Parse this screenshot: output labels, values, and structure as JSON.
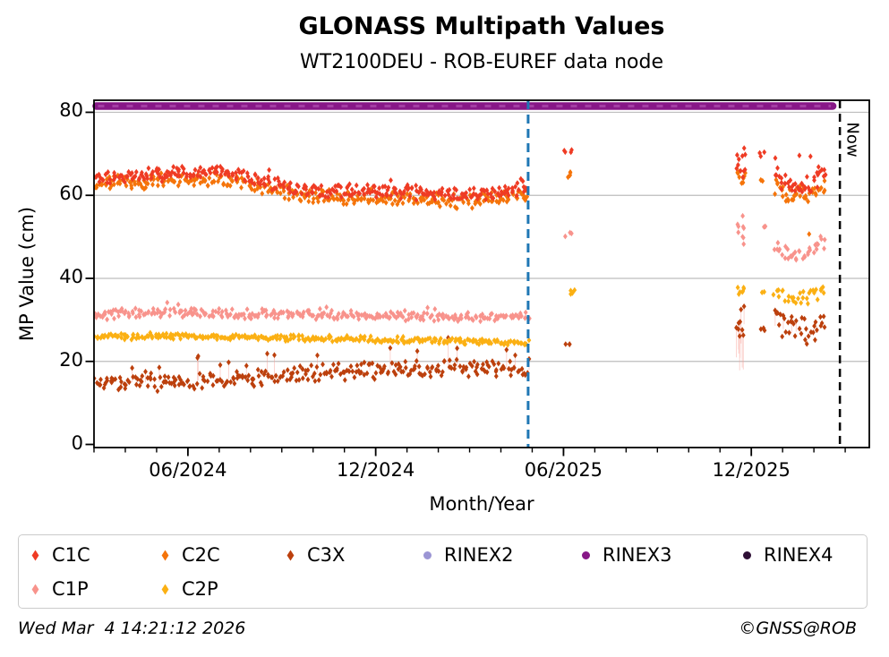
{
  "footer": {
    "timestamp": "Wed Mar  4 14:21:12 2026",
    "copyright": "©GNSS@ROB"
  },
  "legend": {
    "items": [
      {
        "label": "C1C",
        "color": "#ef3b24",
        "marker": "diamond"
      },
      {
        "label": "C2C",
        "color": "#f5740a",
        "marker": "diamond"
      },
      {
        "label": "C3X",
        "color": "#bc400d",
        "marker": "diamond"
      },
      {
        "label": "RINEX2",
        "color": "#9b95d4",
        "marker": "circle"
      },
      {
        "label": "RINEX3",
        "color": "#871787",
        "marker": "circle"
      },
      {
        "label": "RINEX4",
        "color": "#2e0f35",
        "marker": "circle"
      },
      {
        "label": "C1P",
        "color": "#f8938c",
        "marker": "diamond"
      },
      {
        "label": "C2P",
        "color": "#fbb013",
        "marker": "diamond"
      }
    ]
  },
  "chart_data": {
    "type": "scatter",
    "title": "GLONASS Multipath Values",
    "subtitle": "WT2100DEU - ROB-EUREF data node",
    "xlabel": "Month/Year",
    "ylabel": "MP Value (cm)",
    "grid_color": "#bdbdbd",
    "x_axis": {
      "unit": "months-since-2024-03",
      "range": [
        0,
        24.77
      ],
      "major_ticks": [
        {
          "m": 3,
          "label": "06/2024"
        },
        {
          "m": 9,
          "label": "12/2024"
        },
        {
          "m": 15,
          "label": "06/2025"
        },
        {
          "m": 21,
          "label": "12/2025"
        }
      ],
      "minor_tick_months": [
        0,
        1,
        2,
        3,
        4,
        5,
        6,
        7,
        8,
        9,
        10,
        11,
        12,
        13,
        14,
        15,
        16,
        17,
        18,
        19,
        20,
        21,
        22,
        23,
        24
      ]
    },
    "y_axis": {
      "range": [
        -0.75,
        82.9
      ],
      "ticks": [
        0,
        20,
        40,
        60,
        80
      ],
      "grid_values": [
        20,
        40,
        60,
        80
      ]
    },
    "annotations": {
      "now_label": "Now",
      "now_line_month": 23.83,
      "now_line_color": "#000000",
      "marker_line_month": 13.87,
      "marker_line_color": "#1f77b4"
    },
    "rinex3_band": {
      "value": 81.5,
      "month_start": 0.07,
      "month_end": 23.6,
      "color": "#871787",
      "overlay_color": "#a33ea3"
    },
    "series": [
      {
        "name": "C3X",
        "color": "#bc400d",
        "seed": 505,
        "segments": [
          {
            "kind": "trend",
            "n": 300,
            "jitter": 1.9,
            "stems": true,
            "keys": [
              [
                0,
                15.3
              ],
              [
                1.5,
                14.9
              ],
              [
                3,
                15.3
              ],
              [
                5,
                16.0
              ],
              [
                7,
                17.2
              ],
              [
                9,
                17.9
              ],
              [
                11,
                18.2
              ],
              [
                12.5,
                18.4
              ],
              [
                13.87,
                17.9
              ]
            ],
            "spikes": {
              "count": 20,
              "min": 2.6,
              "max": 5.4
            }
          },
          {
            "kind": "cluster",
            "n": 3,
            "m": [
              15.05,
              15.3
            ],
            "v": [
              23.5,
              24.2
            ]
          },
          {
            "kind": "cluster",
            "n": 9,
            "m": [
              20.52,
              20.82
            ],
            "v": [
              21.8,
              33.3
            ],
            "stems": true
          },
          {
            "kind": "cluster",
            "n": 3,
            "m": [
              21.28,
              21.45
            ],
            "v": [
              27.2,
              28.5
            ]
          },
          {
            "kind": "trend",
            "n": 36,
            "jitter": 3.1,
            "stems": true,
            "keys": [
              [
                21.75,
                28.6
              ],
              [
                22.3,
                27.0
              ],
              [
                22.8,
                27.6
              ],
              [
                23.35,
                28.4
              ]
            ],
            "spikes": {
              "count": 6,
              "min": 2.5,
              "max": 4.8
            }
          }
        ]
      },
      {
        "name": "C2P",
        "color": "#fbb013",
        "seed": 404,
        "segments": [
          {
            "kind": "trend",
            "n": 300,
            "jitter": 0.65,
            "keys": [
              [
                0,
                25.9
              ],
              [
                2,
                26.1
              ],
              [
                4,
                25.9
              ],
              [
                6,
                25.6
              ],
              [
                8,
                25.4
              ],
              [
                10,
                25.1
              ],
              [
                12,
                24.8
              ],
              [
                13.87,
                24.7
              ]
            ]
          },
          {
            "kind": "cluster",
            "n": 4,
            "m": [
              15.05,
              15.38
            ],
            "v": [
              35.7,
              37.4
            ]
          },
          {
            "kind": "cluster",
            "n": 7,
            "m": [
              20.52,
              20.82
            ],
            "v": [
              36.0,
              38.0
            ]
          },
          {
            "kind": "cluster",
            "n": 2,
            "m": [
              21.3,
              21.42
            ],
            "v": [
              36.1,
              36.9
            ]
          },
          {
            "kind": "trend",
            "n": 30,
            "jitter": 1.5,
            "keys": [
              [
                21.75,
                36.3
              ],
              [
                22.3,
                35.0
              ],
              [
                22.8,
                35.3
              ],
              [
                23.35,
                36.8
              ]
            ]
          }
        ]
      },
      {
        "name": "C1P",
        "color": "#f8938c",
        "seed": 303,
        "segments": [
          {
            "kind": "trend",
            "n": 300,
            "jitter": 1.0,
            "keys": [
              [
                0,
                31.2
              ],
              [
                2,
                31.8
              ],
              [
                4,
                31.6
              ],
              [
                6,
                31.3
              ],
              [
                8,
                31.1
              ],
              [
                10,
                31.0
              ],
              [
                12,
                30.7
              ],
              [
                13.87,
                30.8
              ]
            ],
            "spikes": {
              "count": 6,
              "min": 1.2,
              "max": 2.2
            }
          },
          {
            "kind": "cluster",
            "n": 3,
            "m": [
              15.05,
              15.35
            ],
            "v": [
              49.8,
              51.3
            ]
          },
          {
            "kind": "cluster",
            "n": 9,
            "m": [
              20.52,
              20.82
            ],
            "v": [
              47.5,
              55.6
            ]
          },
          {
            "kind": "cluster",
            "n": 3,
            "m": [
              21.28,
              21.45
            ],
            "v": [
              51.4,
              52.6
            ]
          },
          {
            "kind": "trend",
            "n": 34,
            "jitter": 1.7,
            "keys": [
              [
                21.75,
                47.6
              ],
              [
                22.3,
                45.7
              ],
              [
                22.8,
                46.3
              ],
              [
                23.35,
                49.3
              ]
            ]
          }
        ]
      },
      {
        "name": "C2C",
        "color": "#f5740a",
        "seed": 202,
        "segments": [
          {
            "kind": "trend",
            "n": 330,
            "jitter": 1.5,
            "keys": [
              [
                0,
                62.6
              ],
              [
                1,
                63.1
              ],
              [
                2,
                63.4
              ],
              [
                3,
                63.6
              ],
              [
                3.8,
                64.0
              ],
              [
                4.6,
                63.6
              ],
              [
                5.3,
                62.2
              ],
              [
                6,
                60.8
              ],
              [
                7,
                59.7
              ],
              [
                8,
                59.4
              ],
              [
                9,
                59.5
              ],
              [
                10,
                59.1
              ],
              [
                11,
                58.7
              ],
              [
                12,
                58.6
              ],
              [
                12.8,
                59.3
              ],
              [
                13.87,
                59.8
              ]
            ]
          },
          {
            "kind": "cluster",
            "n": 4,
            "m": [
              15.05,
              15.4
            ],
            "v": [
              64.2,
              65.9
            ]
          },
          {
            "kind": "cluster",
            "n": 9,
            "m": [
              20.52,
              20.82
            ],
            "v": [
              61.8,
              66.6
            ]
          },
          {
            "kind": "cluster",
            "n": 2,
            "m": [
              21.28,
              21.42
            ],
            "v": [
              63.3,
              64.3
            ]
          },
          {
            "kind": "trend",
            "n": 40,
            "jitter": 2.0,
            "keys": [
              [
                21.75,
                62.4
              ],
              [
                22.3,
                60.2
              ],
              [
                22.8,
                60.5
              ],
              [
                23.35,
                62.6
              ]
            ],
            "spikes": {
              "count": 4,
              "min": -4.8,
              "max": -2.6
            }
          }
        ]
      },
      {
        "name": "C1C",
        "color": "#ef3b24",
        "seed": 101,
        "segments": [
          {
            "kind": "trend",
            "n": 330,
            "jitter": 1.5,
            "keys": [
              [
                0,
                64.2
              ],
              [
                1,
                64.8
              ],
              [
                2,
                65.1
              ],
              [
                3,
                65.3
              ],
              [
                3.8,
                65.7
              ],
              [
                4.6,
                65.3
              ],
              [
                5.3,
                63.9
              ],
              [
                6,
                62.5
              ],
              [
                7,
                61.3
              ],
              [
                8,
                61.0
              ],
              [
                9,
                61.1
              ],
              [
                10,
                60.7
              ],
              [
                11,
                60.2
              ],
              [
                12,
                60.1
              ],
              [
                12.8,
                60.9
              ],
              [
                13.87,
                61.4
              ]
            ],
            "spikes": {
              "count": 8,
              "min": 1.5,
              "max": 2.6
            }
          },
          {
            "kind": "cluster",
            "n": 4,
            "m": [
              15.02,
              15.38
            ],
            "v": [
              69.8,
              71.5
            ]
          },
          {
            "kind": "cluster",
            "n": 11,
            "m": [
              20.52,
              20.82
            ],
            "v": [
              64.3,
              73.3
            ]
          },
          {
            "kind": "cluster",
            "n": 3,
            "m": [
              21.25,
              21.45
            ],
            "v": [
              69.4,
              70.9
            ]
          },
          {
            "kind": "trend",
            "n": 44,
            "jitter": 2.1,
            "keys": [
              [
                21.75,
                64.6
              ],
              [
                22.3,
                62.6
              ],
              [
                22.8,
                62.8
              ],
              [
                23.35,
                64.8
              ]
            ],
            "spikes": {
              "count": 4,
              "min": 2.5,
              "max": 6.5
            }
          }
        ]
      }
    ]
  }
}
